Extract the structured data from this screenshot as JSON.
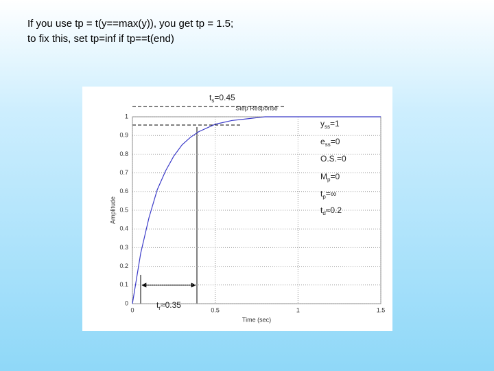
{
  "slide": {
    "lines": [
      "If you use tp = t(y==max(y)), you get tp = 1.5;",
      "to fix this, set tp=inf if tp==t(end)"
    ]
  },
  "chart_data": {
    "type": "line",
    "title": "Step Response",
    "x_label": "Time (sec)",
    "y_label": "Amplitude",
    "x": [
      0,
      0.05,
      0.1,
      0.15,
      0.2,
      0.25,
      0.3,
      0.35,
      0.4,
      0.5,
      0.6,
      0.7,
      0.8,
      1.0,
      1.5
    ],
    "series": [
      {
        "color": "#3a3ac8",
        "values": [
          0,
          0.27,
          0.46,
          0.61,
          0.71,
          0.79,
          0.85,
          0.89,
          0.92,
          0.96,
          0.98,
          0.99,
          1.0,
          1,
          1
        ]
      }
    ],
    "xlim": [
      0,
      1.5
    ],
    "xticks": [
      0,
      0.5,
      1,
      1.5
    ],
    "ylim": [
      0,
      1
    ],
    "yticks": [
      0,
      0.1,
      0.2,
      0.3,
      0.4,
      0.5,
      0.6,
      0.7,
      0.8,
      0.9,
      1
    ],
    "grid": true,
    "annotations": [
      {
        "base": "t",
        "sub": "s",
        "rest": "=0.45"
      },
      {
        "base": "y",
        "sub": "ss",
        "rest": "=1"
      },
      {
        "base": "e",
        "sub": "ss",
        "rest": "=0"
      },
      {
        "base": "O.S.=0"
      },
      {
        "base": "M",
        "sub": "p",
        "rest": "=0"
      },
      {
        "base": "t",
        "sub": "p",
        "rest": "=∞"
      },
      {
        "base": "t",
        "sub": "d",
        "rest": "≈0.2"
      },
      {
        "base": "t",
        "sub": "r",
        "rest": "≈0.35"
      }
    ]
  }
}
